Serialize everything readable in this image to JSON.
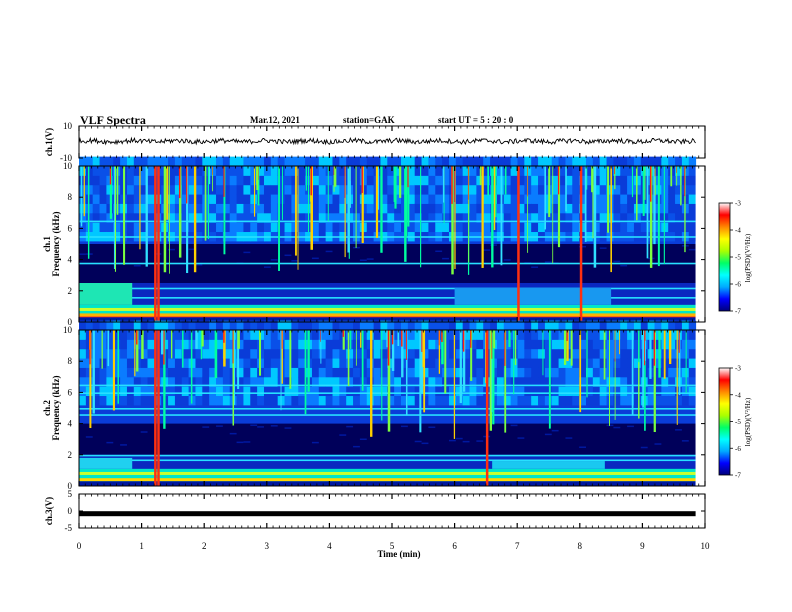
{
  "header": {
    "title": "VLF Spectra",
    "date": "Mar.12, 2021",
    "station": "station=GAK",
    "start_ut": "start UT =  5 : 20 : 0"
  },
  "chart_data": [
    {
      "type": "line",
      "panel": "ch1-waveform",
      "ylabel": "ch.1(V)",
      "ylim": [
        -10,
        10
      ],
      "yticks": [
        "10",
        "-10"
      ],
      "xlim": [
        0,
        10
      ],
      "baseline_v": 0.5,
      "noise_amplitude_v": 1.5
    },
    {
      "type": "heatmap",
      "panel": "ch1-spectrogram",
      "ylabel": "ch.1",
      "ylabel2": "Frequency (kHz)",
      "ylim": [
        0,
        10
      ],
      "yticks": [
        "0",
        "2",
        "4",
        "6",
        "8",
        "10"
      ],
      "xlim": [
        0,
        9.85
      ],
      "dark_band_khz": [
        2.5,
        5.0
      ],
      "colorbar": {
        "label": "log(PSD)(V²/Hz)",
        "range": [
          -7,
          -3
        ],
        "ticks": [
          "-3",
          "-4",
          "-5",
          "-6",
          "-7"
        ],
        "colors": [
          "#00007a",
          "#0000ff",
          "#00aaff",
          "#00ffff",
          "#00ff66",
          "#aaff00",
          "#ffff00",
          "#ff8800",
          "#ff0000",
          "#ffffff"
        ]
      }
    },
    {
      "type": "heatmap",
      "panel": "ch2-spectrogram",
      "ylabel": "ch.2",
      "ylabel2": "Frequency (kHz)",
      "ylim": [
        0,
        10
      ],
      "yticks": [
        "0",
        "2",
        "4",
        "6",
        "8",
        "10"
      ],
      "xlim": [
        0,
        9.85
      ],
      "dark_band_khz": [
        2.0,
        4.0
      ],
      "colorbar": {
        "label": "log(PSD)(V²/Hz)",
        "range": [
          -7,
          -3
        ],
        "ticks": [
          "-3",
          "-4",
          "-5",
          "-6",
          "-7"
        ],
        "colors": [
          "#00007a",
          "#0000ff",
          "#00aaff",
          "#00ffff",
          "#00ff66",
          "#aaff00",
          "#ffff00",
          "#ff8800",
          "#ff0000",
          "#ffffff"
        ]
      }
    },
    {
      "type": "line",
      "panel": "ch3-waveform",
      "ylabel": "ch.3(V)",
      "ylim": [
        -5,
        5
      ],
      "yticks": [
        "5",
        "0",
        "-5"
      ],
      "xlim": [
        0,
        10
      ],
      "baseline_v": -0.8
    }
  ],
  "xaxis": {
    "label": "Time  (min)",
    "ticks": [
      "0",
      "1",
      "2",
      "3",
      "4",
      "5",
      "6",
      "7",
      "8",
      "9",
      "10"
    ],
    "range": [
      0,
      10
    ]
  }
}
